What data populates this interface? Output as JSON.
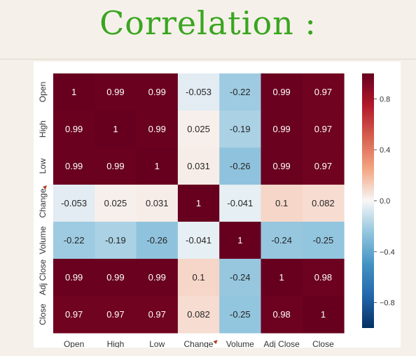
{
  "page": {
    "title": "Correlation :"
  },
  "chart_data": {
    "type": "heatmap",
    "title": "",
    "categories": [
      "Open",
      "High",
      "Low",
      "Change",
      "Volume",
      "Adj Close",
      "Close"
    ],
    "labels": [
      [
        "1",
        "0.99",
        "0.99",
        "-0.053",
        "-0.22",
        "0.99",
        "0.97"
      ],
      [
        "0.99",
        "1",
        "0.99",
        "0.025",
        "-0.19",
        "0.99",
        "0.97"
      ],
      [
        "0.99",
        "0.99",
        "1",
        "0.031",
        "-0.26",
        "0.99",
        "0.97"
      ],
      [
        "-0.053",
        "0.025",
        "0.031",
        "1",
        "-0.041",
        "0.1",
        "0.082"
      ],
      [
        "-0.22",
        "-0.19",
        "-0.26",
        "-0.041",
        "1",
        "-0.24",
        "-0.25"
      ],
      [
        "0.99",
        "0.99",
        "0.99",
        "0.1",
        "-0.24",
        "1",
        "0.98"
      ],
      [
        "0.97",
        "0.97",
        "0.97",
        "0.082",
        "-0.25",
        "0.98",
        "1"
      ]
    ],
    "colorbar": {
      "min": -1,
      "max": 1,
      "ticks": [
        0.8,
        0.4,
        0.0,
        -0.4,
        -0.8
      ],
      "tick_labels": [
        "0.8",
        "0.4",
        "0.0",
        "−0.4",
        "−0.8"
      ],
      "cmap": "RdBu_r"
    },
    "colors": {
      "low": "#053061",
      "mid": "#f7f7f7",
      "high": "#67001f"
    },
    "annotations": [
      "change-label-marker-icon"
    ]
  }
}
